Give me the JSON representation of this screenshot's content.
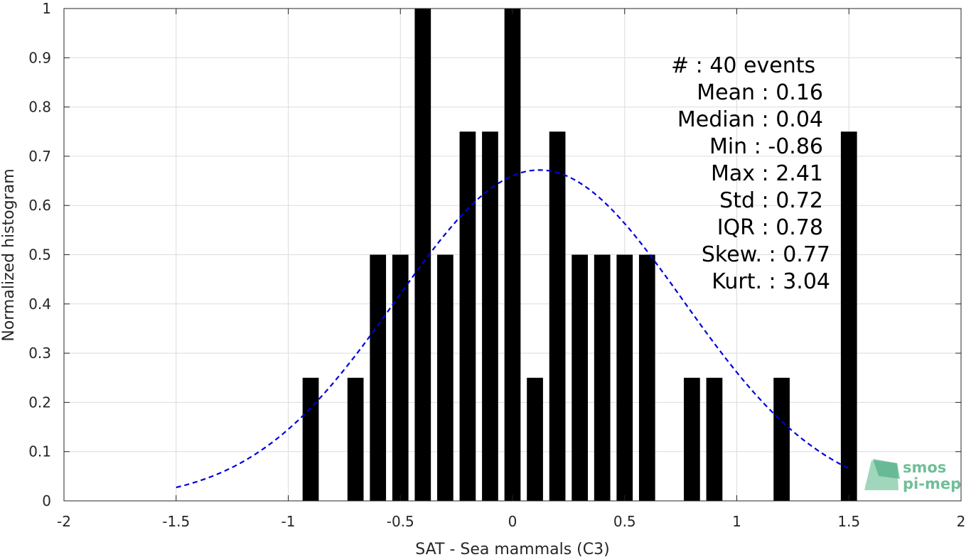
{
  "chart_data": {
    "type": "bar",
    "title": "",
    "xlabel": "SAT - Sea mammals (C3)",
    "ylabel": "Normalized histogram",
    "xlim": [
      -2,
      2
    ],
    "ylim": [
      0,
      1
    ],
    "grid": true,
    "xticks": [
      -2,
      -1.5,
      -1,
      -0.5,
      0,
      0.5,
      1,
      1.5,
      2
    ],
    "xtick_labels": [
      "-2",
      "-1.5",
      "-1",
      "-0.5",
      "0",
      "0.5",
      "1",
      "1.5",
      "2"
    ],
    "yticks": [
      0,
      0.1,
      0.2,
      0.3,
      0.4,
      0.5,
      0.6,
      0.7,
      0.8,
      0.9,
      1
    ],
    "ytick_labels": [
      "0",
      "0.1",
      "0.2",
      "0.3",
      "0.4",
      "0.5",
      "0.6",
      "0.7",
      "0.8",
      "0.9",
      "1"
    ],
    "bar_color": "#000000",
    "bin_width": 0.1,
    "bars": [
      {
        "x": -0.9,
        "value": 0.25
      },
      {
        "x": -0.7,
        "value": 0.25
      },
      {
        "x": -0.6,
        "value": 0.5
      },
      {
        "x": -0.5,
        "value": 0.5
      },
      {
        "x": -0.4,
        "value": 1.0
      },
      {
        "x": -0.3,
        "value": 0.5
      },
      {
        "x": -0.2,
        "value": 0.75
      },
      {
        "x": -0.1,
        "value": 0.75
      },
      {
        "x": 0.0,
        "value": 1.0
      },
      {
        "x": 0.1,
        "value": 0.25
      },
      {
        "x": 0.2,
        "value": 0.75
      },
      {
        "x": 0.3,
        "value": 0.5
      },
      {
        "x": 0.4,
        "value": 0.5
      },
      {
        "x": 0.5,
        "value": 0.5
      },
      {
        "x": 0.6,
        "value": 0.5
      },
      {
        "x": 0.8,
        "value": 0.25
      },
      {
        "x": 0.9,
        "value": 0.25
      },
      {
        "x": 1.2,
        "value": 0.25
      },
      {
        "x": 1.5,
        "value": 0.75
      }
    ],
    "fit_curve": {
      "type": "gaussian",
      "color": "#0000dd",
      "style": "dashed",
      "mean": 0.12,
      "std": 0.64,
      "peak": 0.672,
      "x_range": [
        -1.5,
        1.5
      ]
    },
    "stats": [
      {
        "label": "#  : 40 events",
        "align": "left"
      },
      {
        "label": "Mean : 0.16",
        "align": "right"
      },
      {
        "label": "Median : 0.04",
        "align": "right"
      },
      {
        "label": "Min : -0.86",
        "align": "right"
      },
      {
        "label": "Max : 2.41",
        "align": "right"
      },
      {
        "label": "Std : 0.72",
        "align": "right"
      },
      {
        "label": "IQR : 0.78",
        "align": "right"
      },
      {
        "label": "Skew. : 0.77",
        "align": "right"
      },
      {
        "label": "Kurt. : 3.04",
        "align": "right"
      }
    ]
  },
  "logo": {
    "line1": "smos",
    "line2": "pi-mep",
    "color": "#6fbf97"
  }
}
